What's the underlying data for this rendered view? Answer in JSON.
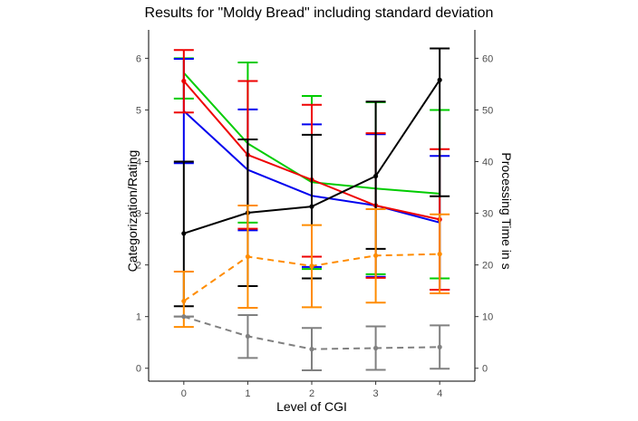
{
  "chart_data": {
    "type": "line",
    "title": "Results for \"Moldy Bread\" including standard deviation",
    "xlabel": "Level of CGI",
    "ylabel": "Categorization/Rating",
    "y2label": "Processing Time in s",
    "x": [
      0,
      1,
      2,
      3,
      4
    ],
    "xlim": [
      -0.55,
      4.55
    ],
    "ylim": [
      -0.25,
      6.55
    ],
    "y2lim": [
      -2.5,
      65.5
    ],
    "x_ticks": [
      "0",
      "1",
      "2",
      "3",
      "4"
    ],
    "y_ticks": [
      "0",
      "1",
      "2",
      "3",
      "4",
      "5",
      "6"
    ],
    "y2_ticks": [
      "0",
      "10",
      "20",
      "30",
      "40",
      "50",
      "60"
    ],
    "grid": false,
    "legend": "none",
    "series": [
      {
        "color": "#00cc00",
        "style": "solid",
        "axis": "left",
        "markers": false,
        "values": [
          5.72,
          4.35,
          3.6,
          3.48,
          3.38
        ],
        "err_low": [
          5.22,
          2.82,
          1.92,
          1.82,
          1.74
        ],
        "err_high": [
          6.0,
          5.92,
          5.27,
          5.15,
          5.0
        ]
      },
      {
        "color": "#0000ee",
        "style": "solid",
        "axis": "left",
        "markers": false,
        "values": [
          4.98,
          3.84,
          3.34,
          3.15,
          2.82
        ],
        "err_low": [
          3.97,
          2.67,
          1.96,
          1.77,
          1.52
        ],
        "err_high": [
          5.99,
          5.01,
          4.72,
          4.53,
          4.11
        ]
      },
      {
        "color": "#ee0000",
        "style": "solid",
        "axis": "left",
        "markers": true,
        "values": [
          5.56,
          4.13,
          3.65,
          3.15,
          2.88
        ],
        "err_low": [
          4.95,
          2.7,
          2.16,
          1.75,
          1.52
        ],
        "err_high": [
          6.16,
          5.56,
          5.1,
          4.55,
          4.24
        ]
      },
      {
        "color": "#000000",
        "style": "solid",
        "axis": "right",
        "markers": true,
        "values": [
          26.1,
          30.1,
          31.3,
          37.2,
          55.8
        ],
        "err_low": [
          12.0,
          15.9,
          17.4,
          23.1,
          33.3
        ],
        "err_high": [
          40.0,
          44.3,
          45.2,
          51.6,
          61.9
        ]
      },
      {
        "color": "#ff8c00",
        "style": "dashed",
        "axis": "left",
        "markers": true,
        "values": [
          1.3,
          2.16,
          1.98,
          2.18,
          2.21
        ],
        "err_low": [
          0.8,
          1.17,
          1.18,
          1.27,
          1.45
        ],
        "err_high": [
          1.87,
          3.15,
          2.77,
          3.08,
          2.98
        ]
      },
      {
        "color": "#808080",
        "style": "dashed",
        "axis": "left",
        "markers": true,
        "values": [
          1.0,
          0.62,
          0.37,
          0.39,
          0.41
        ],
        "err_low": [
          1.0,
          0.2,
          -0.04,
          -0.03,
          -0.01
        ],
        "err_high": [
          1.0,
          1.03,
          0.78,
          0.81,
          0.83
        ]
      }
    ]
  }
}
